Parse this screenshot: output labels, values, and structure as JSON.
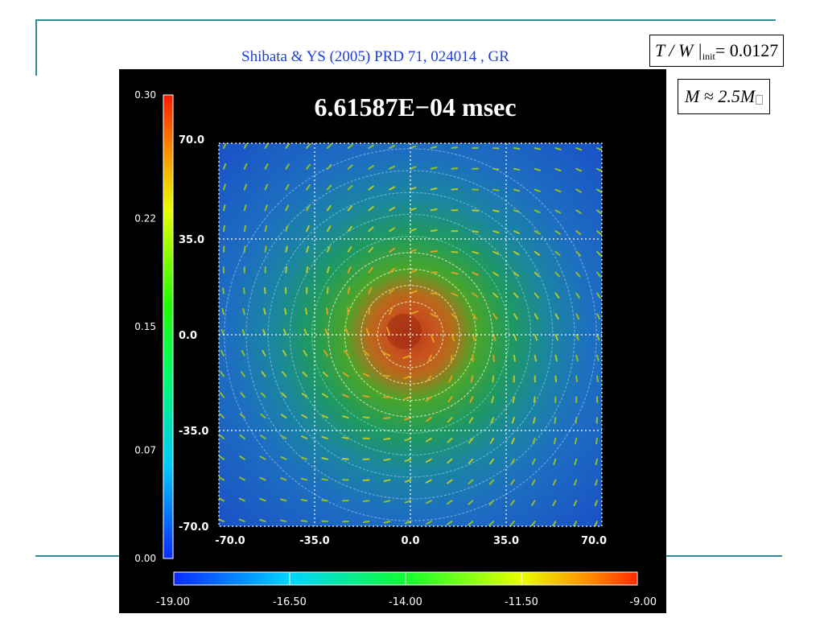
{
  "slide": {
    "citation": "Shibata & YS (2005) PRD 71, 024014 , GR",
    "eq1": {
      "lhs": "T / W |",
      "sub": "init",
      "rhs": "= 0.0127"
    },
    "eq2": {
      "lhs": "M",
      "rel": "≈",
      "rhs": "2.5M"
    },
    "line_color": "#2e8b94",
    "citation_color": "#1f3fd8"
  },
  "figure": {
    "title": "6.61587E−04 msec",
    "left_colorbar": {
      "ticks": [
        "0.30",
        "0.22",
        "0.15",
        "0.07",
        "0.00"
      ],
      "values": [
        0.3,
        0.22,
        0.15,
        0.07,
        0.0
      ]
    },
    "bottom_colorbar": {
      "ticks": [
        "-19.00",
        "-16.50",
        "-14.00",
        "-11.50",
        "-9.00"
      ],
      "values": [
        -19.0,
        -16.5,
        -14.0,
        -11.5,
        -9.0
      ]
    },
    "plot": {
      "x_ticks": [
        "-70.0",
        "-35.0",
        "0.0",
        "35.0",
        "70.0"
      ],
      "y_ticks": [
        "70.0",
        "35.0",
        "0.0",
        "-35.0",
        "-70.0"
      ],
      "x_range": [
        -70,
        70
      ],
      "y_range": [
        -70,
        70
      ],
      "grid": true,
      "center": [
        0,
        0
      ],
      "ring_radii": [
        12,
        18,
        24,
        30,
        36,
        44,
        52,
        60,
        68
      ]
    }
  }
}
